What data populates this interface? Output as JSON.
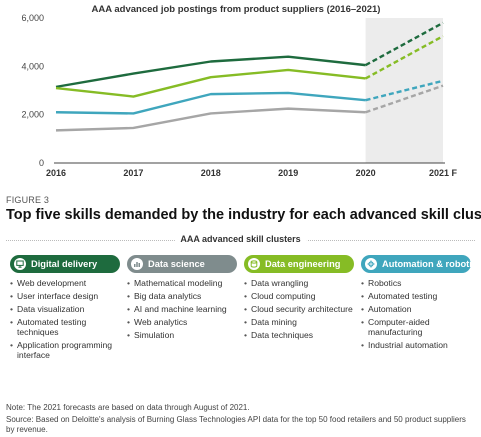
{
  "chart_data": {
    "type": "line",
    "title": "AAA advanced job postings from product suppliers (2016–2021)",
    "categories": [
      "2016",
      "2017",
      "2018",
      "2019",
      "2020",
      "2021 F"
    ],
    "ylim": [
      0,
      6000
    ],
    "yticks": [
      "0",
      "2,000",
      "4,000",
      "6,000"
    ],
    "forecast_category": "2021 F",
    "forecast_shading": true,
    "grid": false,
    "series": [
      {
        "color": "#1e6b3e",
        "values": [
          3150,
          3700,
          4200,
          4400,
          4050,
          5800
        ]
      },
      {
        "color": "#86bc25",
        "values": [
          3100,
          2750,
          3550,
          3850,
          3500,
          5250
        ]
      },
      {
        "color": "#3fa6bd",
        "values": [
          2100,
          2050,
          2850,
          2900,
          2600,
          3400
        ]
      },
      {
        "color": "#a6a6a6",
        "values": [
          1350,
          1450,
          2050,
          2250,
          2100,
          3200
        ]
      }
    ]
  },
  "figure_label": "FIGURE 3",
  "headline": "Top five skills demanded by the industry for each advanced skill cluster",
  "clusters_title": "AAA advanced skill clusters",
  "clusters": [
    {
      "name": "Digital delivery",
      "color": "#1e6b3e",
      "icon": "digital-delivery-icon",
      "items": [
        "Web development",
        "User interface design",
        "Data visualization",
        "Automated testing techniques",
        "Application programming interface"
      ]
    },
    {
      "name": "Data science",
      "color": "#7f8c8d",
      "icon": "data-science-icon",
      "items": [
        "Mathematical modeling",
        "Big data analytics",
        "AI and machine learning",
        "Web analytics",
        "Simulation"
      ]
    },
    {
      "name": "Data engineering",
      "color": "#86bc25",
      "icon": "data-engineering-icon",
      "items": [
        "Data wrangling",
        "Cloud computing",
        "Cloud security architecture",
        "Data mining",
        "Data techniques"
      ]
    },
    {
      "name": "Automation & robotics",
      "color": "#3fa6bd",
      "icon": "automation-robotics-icon",
      "items": [
        "Robotics",
        "Automated testing",
        "Automation",
        "Computer-aided manufacturing",
        "Industrial automation"
      ]
    }
  ],
  "note": "Note: The 2021 forecasts are based on data through August of 2021.",
  "source": "Source: Based on Deloitte's analysis of Burning Glass Technologies API data for the top 50 food retailers and 50 product suppliers by revenue."
}
